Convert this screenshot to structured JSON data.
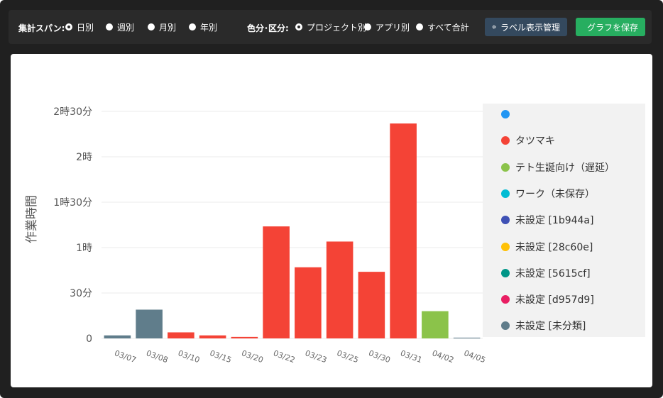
{
  "toolbar": {
    "span_label": "集計スパン:",
    "span_options": [
      "日別",
      "週別",
      "月別",
      "年別"
    ],
    "span_selected": 0,
    "color_label": "色分･区分:",
    "color_options": [
      "プロジェクト別",
      "アプリ別",
      "すべて合計"
    ],
    "color_selected": 0,
    "label_button": "ラベル表示管理",
    "save_button": "グラフを保存"
  },
  "chart_data": {
    "type": "bar",
    "ylabel": "作業時間",
    "ylim": [
      0,
      150
    ],
    "y_unit": "minutes",
    "yticks": [
      {
        "value": 0,
        "label": "0"
      },
      {
        "value": 30,
        "label": "30分"
      },
      {
        "value": 60,
        "label": "1時"
      },
      {
        "value": 90,
        "label": "1時30分"
      },
      {
        "value": 120,
        "label": "2時"
      },
      {
        "value": 150,
        "label": "2時30分"
      }
    ],
    "categories": [
      "03/07",
      "03/08",
      "03/10",
      "03/15",
      "03/20",
      "03/22",
      "03/23",
      "03/25",
      "03/30",
      "03/31",
      "04/02",
      "04/05"
    ],
    "bars": [
      {
        "category": "03/07",
        "value": 2,
        "series": "未設定 [未分類]"
      },
      {
        "category": "03/08",
        "value": 19,
        "series": "未設定 [未分類]"
      },
      {
        "category": "03/10",
        "value": 4,
        "series": "タツマキ"
      },
      {
        "category": "03/15",
        "value": 2,
        "series": "タツマキ"
      },
      {
        "category": "03/20",
        "value": 1,
        "series": "タツマキ"
      },
      {
        "category": "03/22",
        "value": 74,
        "series": "タツマキ"
      },
      {
        "category": "03/23",
        "value": 47,
        "series": "タツマキ"
      },
      {
        "category": "03/25",
        "value": 64,
        "series": "タツマキ"
      },
      {
        "category": "03/30",
        "value": 44,
        "series": "タツマキ"
      },
      {
        "category": "03/31",
        "value": 142,
        "series": "タツマキ"
      },
      {
        "category": "04/02",
        "value": 18,
        "series": "テト生誕向け（遅延）"
      },
      {
        "category": "04/05",
        "value": 0.5,
        "series": "未設定 [未分類]"
      }
    ],
    "legend": [
      {
        "name": "",
        "color": "#2196f3"
      },
      {
        "name": "タツマキ",
        "color": "#f44336"
      },
      {
        "name": "テト生誕向け（遅延）",
        "color": "#8bc34a"
      },
      {
        "name": "ワーク（未保存）",
        "color": "#00bcd4"
      },
      {
        "name": "未設定 [1b944a]",
        "color": "#3f51b5"
      },
      {
        "name": "未設定 [28c60e]",
        "color": "#ffc107"
      },
      {
        "name": "未設定 [5615cf]",
        "color": "#009688"
      },
      {
        "name": "未設定 [d957d9]",
        "color": "#e91e63"
      },
      {
        "name": "未設定 [未分類]",
        "color": "#607d8b"
      }
    ],
    "legend_position": "right",
    "grid": true
  }
}
